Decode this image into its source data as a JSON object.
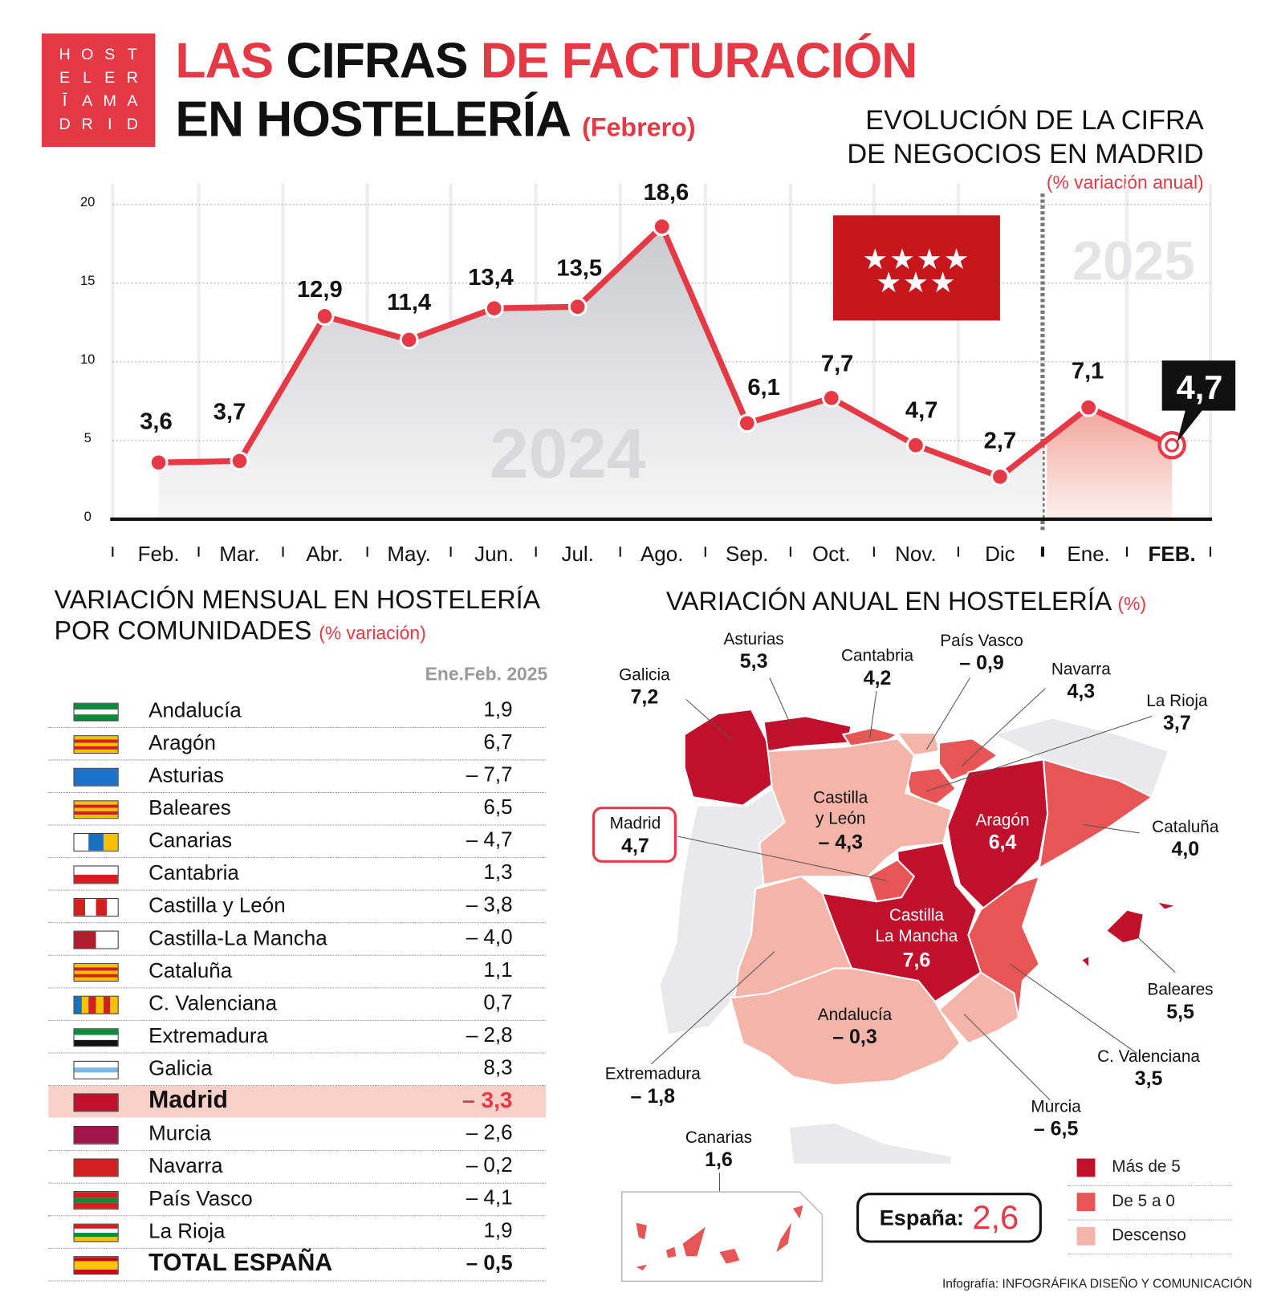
{
  "logo": {
    "letters": [
      "H",
      "O",
      "S",
      "T",
      "E",
      "L",
      "E",
      "R",
      "Ī",
      "A",
      "M",
      "A",
      "D",
      "R",
      "I",
      "D"
    ]
  },
  "title": {
    "line1_a": "LAS",
    "line1_b": "CIFRAS",
    "line1_c": "DE FACTURACIÓN",
    "line2": "EN HOSTELERÍA",
    "line2_sub": "(Febrero)"
  },
  "chart_title": {
    "line1": "EVOLUCIÓN DE LA CIFRA",
    "line2": "DE NEGOCIOS EN MADRID",
    "sub": "(% variación anual)"
  },
  "colors": {
    "accent": "#e63946",
    "dark_region": "#c0102c",
    "medium_region": "#e85555",
    "light_region": "#f4b4a8",
    "highlight": "#f9d0c8"
  },
  "chart_data": {
    "type": "line",
    "categories": [
      "Feb.",
      "Mar.",
      "Abr.",
      "May.",
      "Jun.",
      "Jul.",
      "Ago.",
      "Sep.",
      "Oct.",
      "Nov.",
      "Dic",
      "Ene.",
      "FEB."
    ],
    "values": [
      3.6,
      3.7,
      12.9,
      11.4,
      13.4,
      13.5,
      18.6,
      6.1,
      7.7,
      4.7,
      2.7,
      7.1,
      4.7
    ],
    "labels": [
      "3,6",
      "3,7",
      "12,9",
      "11,4",
      "13,4",
      "13,5",
      "18,6",
      "6,1",
      "7,7",
      "4,7",
      "2,7",
      "7,1",
      "4,7"
    ],
    "year_labels": [
      "2024",
      "2025"
    ],
    "yticks": [
      "0",
      "5",
      "10",
      "15",
      "20"
    ],
    "ylim": [
      0,
      20
    ],
    "grid": true,
    "area_fill": true,
    "line_color": "#e63946"
  },
  "monthly": {
    "title_line1": "VARIACIÓN MENSUAL EN HOSTELERÍA",
    "title_line2": "POR COMUNIDADES",
    "title_sub": "(% variación)",
    "column_header": "Ene.Feb. 2025",
    "rows": [
      {
        "name": "Andalucía",
        "value": "1,9",
        "flag": [
          "#0a8a3a",
          "#ffffff",
          "#0a8a3a"
        ],
        "dir": "h"
      },
      {
        "name": "Aragón",
        "value": "6,7",
        "flag": [
          "#f6c200",
          "#d21f1f",
          "#f6c200",
          "#d21f1f",
          "#f6c200"
        ],
        "dir": "h"
      },
      {
        "name": "Asturias",
        "value": "– 7,7",
        "flag": [
          "#1a73c8"
        ],
        "dir": "h"
      },
      {
        "name": "Baleares",
        "value": "6,5",
        "flag": [
          "#f6c200",
          "#d21f1f",
          "#f6c200",
          "#d21f1f",
          "#f6c200"
        ],
        "dir": "h"
      },
      {
        "name": "Canarias",
        "value": "– 4,7",
        "flag": [
          "#ffffff",
          "#1a6fc0",
          "#f6c200"
        ],
        "dir": "v"
      },
      {
        "name": "Cantabria",
        "value": "1,3",
        "flag": [
          "#ffffff",
          "#d21f1f"
        ],
        "dir": "h"
      },
      {
        "name": "Castilla y León",
        "value": "– 3,8",
        "flag": [
          "#d21f1f",
          "#ffffff",
          "#d21f1f",
          "#ffffff"
        ],
        "dir": "v"
      },
      {
        "name": "Castilla-La Mancha",
        "value": "– 4,0",
        "flag": [
          "#b01e2e",
          "#ffffff"
        ],
        "dir": "v"
      },
      {
        "name": "Cataluña",
        "value": "1,1",
        "flag": [
          "#f6c200",
          "#d21f1f",
          "#f6c200",
          "#d21f1f",
          "#f6c200"
        ],
        "dir": "h"
      },
      {
        "name": "C. Valenciana",
        "value": "0,7",
        "flag": [
          "#1a6fc0",
          "#f6c200",
          "#d21f1f",
          "#f6c200",
          "#d21f1f",
          "#f6c200"
        ],
        "dir": "v"
      },
      {
        "name": "Extremadura",
        "value": "– 2,8",
        "flag": [
          "#0a8a3a",
          "#ffffff",
          "#111111"
        ],
        "dir": "h"
      },
      {
        "name": "Galicia",
        "value": "8,3",
        "flag": [
          "#ffffff",
          "#7ab8e6",
          "#ffffff"
        ],
        "dir": "h"
      },
      {
        "name": "Madrid",
        "value": "– 3,3",
        "flag": [
          "#c0102c"
        ],
        "dir": "h",
        "highlight": true
      },
      {
        "name": "Murcia",
        "value": "– 2,6",
        "flag": [
          "#a0154a"
        ],
        "dir": "h"
      },
      {
        "name": "Navarra",
        "value": "– 0,2",
        "flag": [
          "#d21f1f"
        ],
        "dir": "h"
      },
      {
        "name": "País Vasco",
        "value": "– 4,1",
        "flag": [
          "#d21f1f",
          "#0a8a3a",
          "#d21f1f"
        ],
        "dir": "h"
      },
      {
        "name": "La Rioja",
        "value": "1,9",
        "flag": [
          "#d21f1f",
          "#ffffff",
          "#0a8a3a",
          "#f6c200"
        ],
        "dir": "h"
      },
      {
        "name": "TOTAL ESPAÑA",
        "value": "– 0,5",
        "flag": [
          "#c60b1e",
          "#ffc400",
          "#ffc400",
          "#c60b1e"
        ],
        "dir": "h",
        "total": true
      }
    ]
  },
  "annual": {
    "title": "VARIACIÓN ANUAL EN HOSTELERÍA",
    "title_sub": "(%)",
    "regions": [
      {
        "name": "Galicia",
        "value": "7,2",
        "class": "dark"
      },
      {
        "name": "Asturias",
        "value": "5,3",
        "class": "dark"
      },
      {
        "name": "Cantabria",
        "value": "4,2",
        "class": "medium"
      },
      {
        "name": "País Vasco",
        "value": "– 0,9",
        "class": "light"
      },
      {
        "name": "Navarra",
        "value": "4,3",
        "class": "medium"
      },
      {
        "name": "La Rioja",
        "value": "3,7",
        "class": "medium"
      },
      {
        "name": "Castilla y León",
        "value": "– 4,3",
        "class": "light"
      },
      {
        "name": "Aragón",
        "value": "6,4",
        "class": "dark"
      },
      {
        "name": "Cataluña",
        "value": "4,0",
        "class": "medium"
      },
      {
        "name": "Madrid",
        "value": "4,7",
        "class": "medium"
      },
      {
        "name": "Castilla La Mancha",
        "value": "7,6",
        "class": "dark"
      },
      {
        "name": "Baleares",
        "value": "5,5",
        "class": "dark"
      },
      {
        "name": "C. Valenciana",
        "value": "3,5",
        "class": "medium"
      },
      {
        "name": "Extremadura",
        "value": "– 1,8",
        "class": "light"
      },
      {
        "name": "Andalucía",
        "value": "– 0,3",
        "class": "light"
      },
      {
        "name": "Murcia",
        "value": "– 6,5",
        "class": "light"
      },
      {
        "name": "Canarias",
        "value": "1,6",
        "class": "medium"
      }
    ],
    "legend": [
      {
        "label": "Más de 5",
        "color": "#c0102c"
      },
      {
        "label": "De 5 a 0",
        "color": "#e85555"
      },
      {
        "label": "Descenso",
        "color": "#f4b4a8"
      }
    ],
    "spain_label": "España:",
    "spain_value": "2,6"
  },
  "credit": "Infografía: INFOGRÁFIKA DISEÑO Y COMUNICACIÓN"
}
